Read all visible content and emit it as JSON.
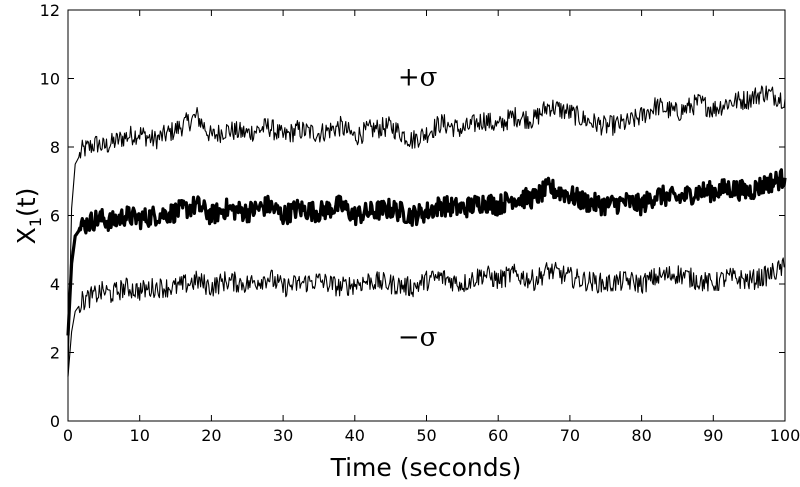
{
  "chart_data": {
    "type": "line",
    "xlabel": "Time (seconds)",
    "ylabel_main": "X",
    "ylabel_sub": "1",
    "ylabel_suffix": "(t)",
    "xlim": [
      0,
      100
    ],
    "ylim": [
      0,
      12
    ],
    "xticks": [
      0,
      10,
      20,
      30,
      40,
      50,
      60,
      70,
      80,
      90,
      100
    ],
    "yticks": [
      0,
      2,
      4,
      6,
      8,
      10,
      12
    ],
    "grid": false,
    "legend": "none",
    "annotations": [
      {
        "text": "+σ",
        "x": 46,
        "y": 9.8
      },
      {
        "text": "−σ",
        "x": 46,
        "y": 2.2
      }
    ],
    "series": [
      {
        "role": "upper",
        "x": [
          0,
          0.5,
          1,
          2,
          3,
          4,
          5,
          6,
          7,
          8,
          10,
          12,
          15,
          18,
          20,
          22,
          25,
          28,
          30,
          32,
          35,
          38,
          40,
          42,
          45,
          48,
          50,
          52,
          55,
          58,
          60,
          62,
          65,
          67,
          70,
          72,
          75,
          78,
          80,
          82,
          85,
          88,
          90,
          92,
          95,
          97,
          100
        ],
        "y": [
          1.3,
          6.2,
          7.5,
          7.9,
          8.0,
          8.1,
          8.0,
          8.1,
          8.2,
          8.3,
          8.4,
          8.2,
          8.5,
          8.9,
          8.3,
          8.5,
          8.4,
          8.6,
          8.3,
          8.5,
          8.4,
          8.6,
          8.3,
          8.5,
          8.6,
          8.2,
          8.4,
          8.7,
          8.5,
          8.8,
          8.6,
          8.9,
          8.8,
          9.2,
          9.0,
          8.8,
          8.6,
          8.7,
          8.9,
          9.2,
          9.0,
          9.3,
          9.1,
          9.3,
          9.4,
          9.6,
          9.4
        ]
      },
      {
        "role": "mean",
        "x": [
          0,
          0.5,
          1,
          2,
          3,
          4,
          5,
          6,
          7,
          8,
          10,
          12,
          15,
          18,
          20,
          22,
          25,
          28,
          30,
          32,
          35,
          38,
          40,
          42,
          45,
          48,
          50,
          52,
          55,
          58,
          60,
          62,
          65,
          67,
          70,
          72,
          75,
          78,
          80,
          82,
          85,
          88,
          90,
          92,
          95,
          97,
          100
        ],
        "y": [
          2.5,
          4.6,
          5.4,
          5.7,
          5.8,
          5.9,
          5.9,
          5.8,
          5.9,
          6.0,
          5.9,
          6.0,
          6.1,
          6.3,
          6.0,
          6.2,
          6.1,
          6.3,
          6.0,
          6.2,
          6.1,
          6.3,
          6.0,
          6.1,
          6.2,
          6.0,
          6.1,
          6.3,
          6.2,
          6.4,
          6.3,
          6.5,
          6.5,
          6.8,
          6.6,
          6.4,
          6.3,
          6.4,
          6.3,
          6.6,
          6.5,
          6.7,
          6.7,
          6.8,
          6.7,
          6.9,
          7.1
        ]
      },
      {
        "role": "lower",
        "x": [
          0,
          0.5,
          1,
          2,
          3,
          4,
          5,
          6,
          7,
          8,
          10,
          12,
          15,
          18,
          20,
          22,
          25,
          28,
          30,
          32,
          35,
          38,
          40,
          42,
          45,
          48,
          50,
          52,
          55,
          58,
          60,
          62,
          65,
          67,
          70,
          72,
          75,
          78,
          80,
          82,
          85,
          88,
          90,
          92,
          95,
          97,
          100
        ],
        "y": [
          1.3,
          2.6,
          3.2,
          3.5,
          3.6,
          3.7,
          3.8,
          3.7,
          3.8,
          3.9,
          3.8,
          3.9,
          3.9,
          4.1,
          3.9,
          4.1,
          4.0,
          4.2,
          3.9,
          4.0,
          4.1,
          3.9,
          4.0,
          4.1,
          4.0,
          3.9,
          4.1,
          4.2,
          4.0,
          4.3,
          4.1,
          4.3,
          4.1,
          4.4,
          4.2,
          4.1,
          4.0,
          4.1,
          4.0,
          4.2,
          4.3,
          4.1,
          4.0,
          4.2,
          4.1,
          4.2,
          4.5
        ]
      }
    ]
  }
}
